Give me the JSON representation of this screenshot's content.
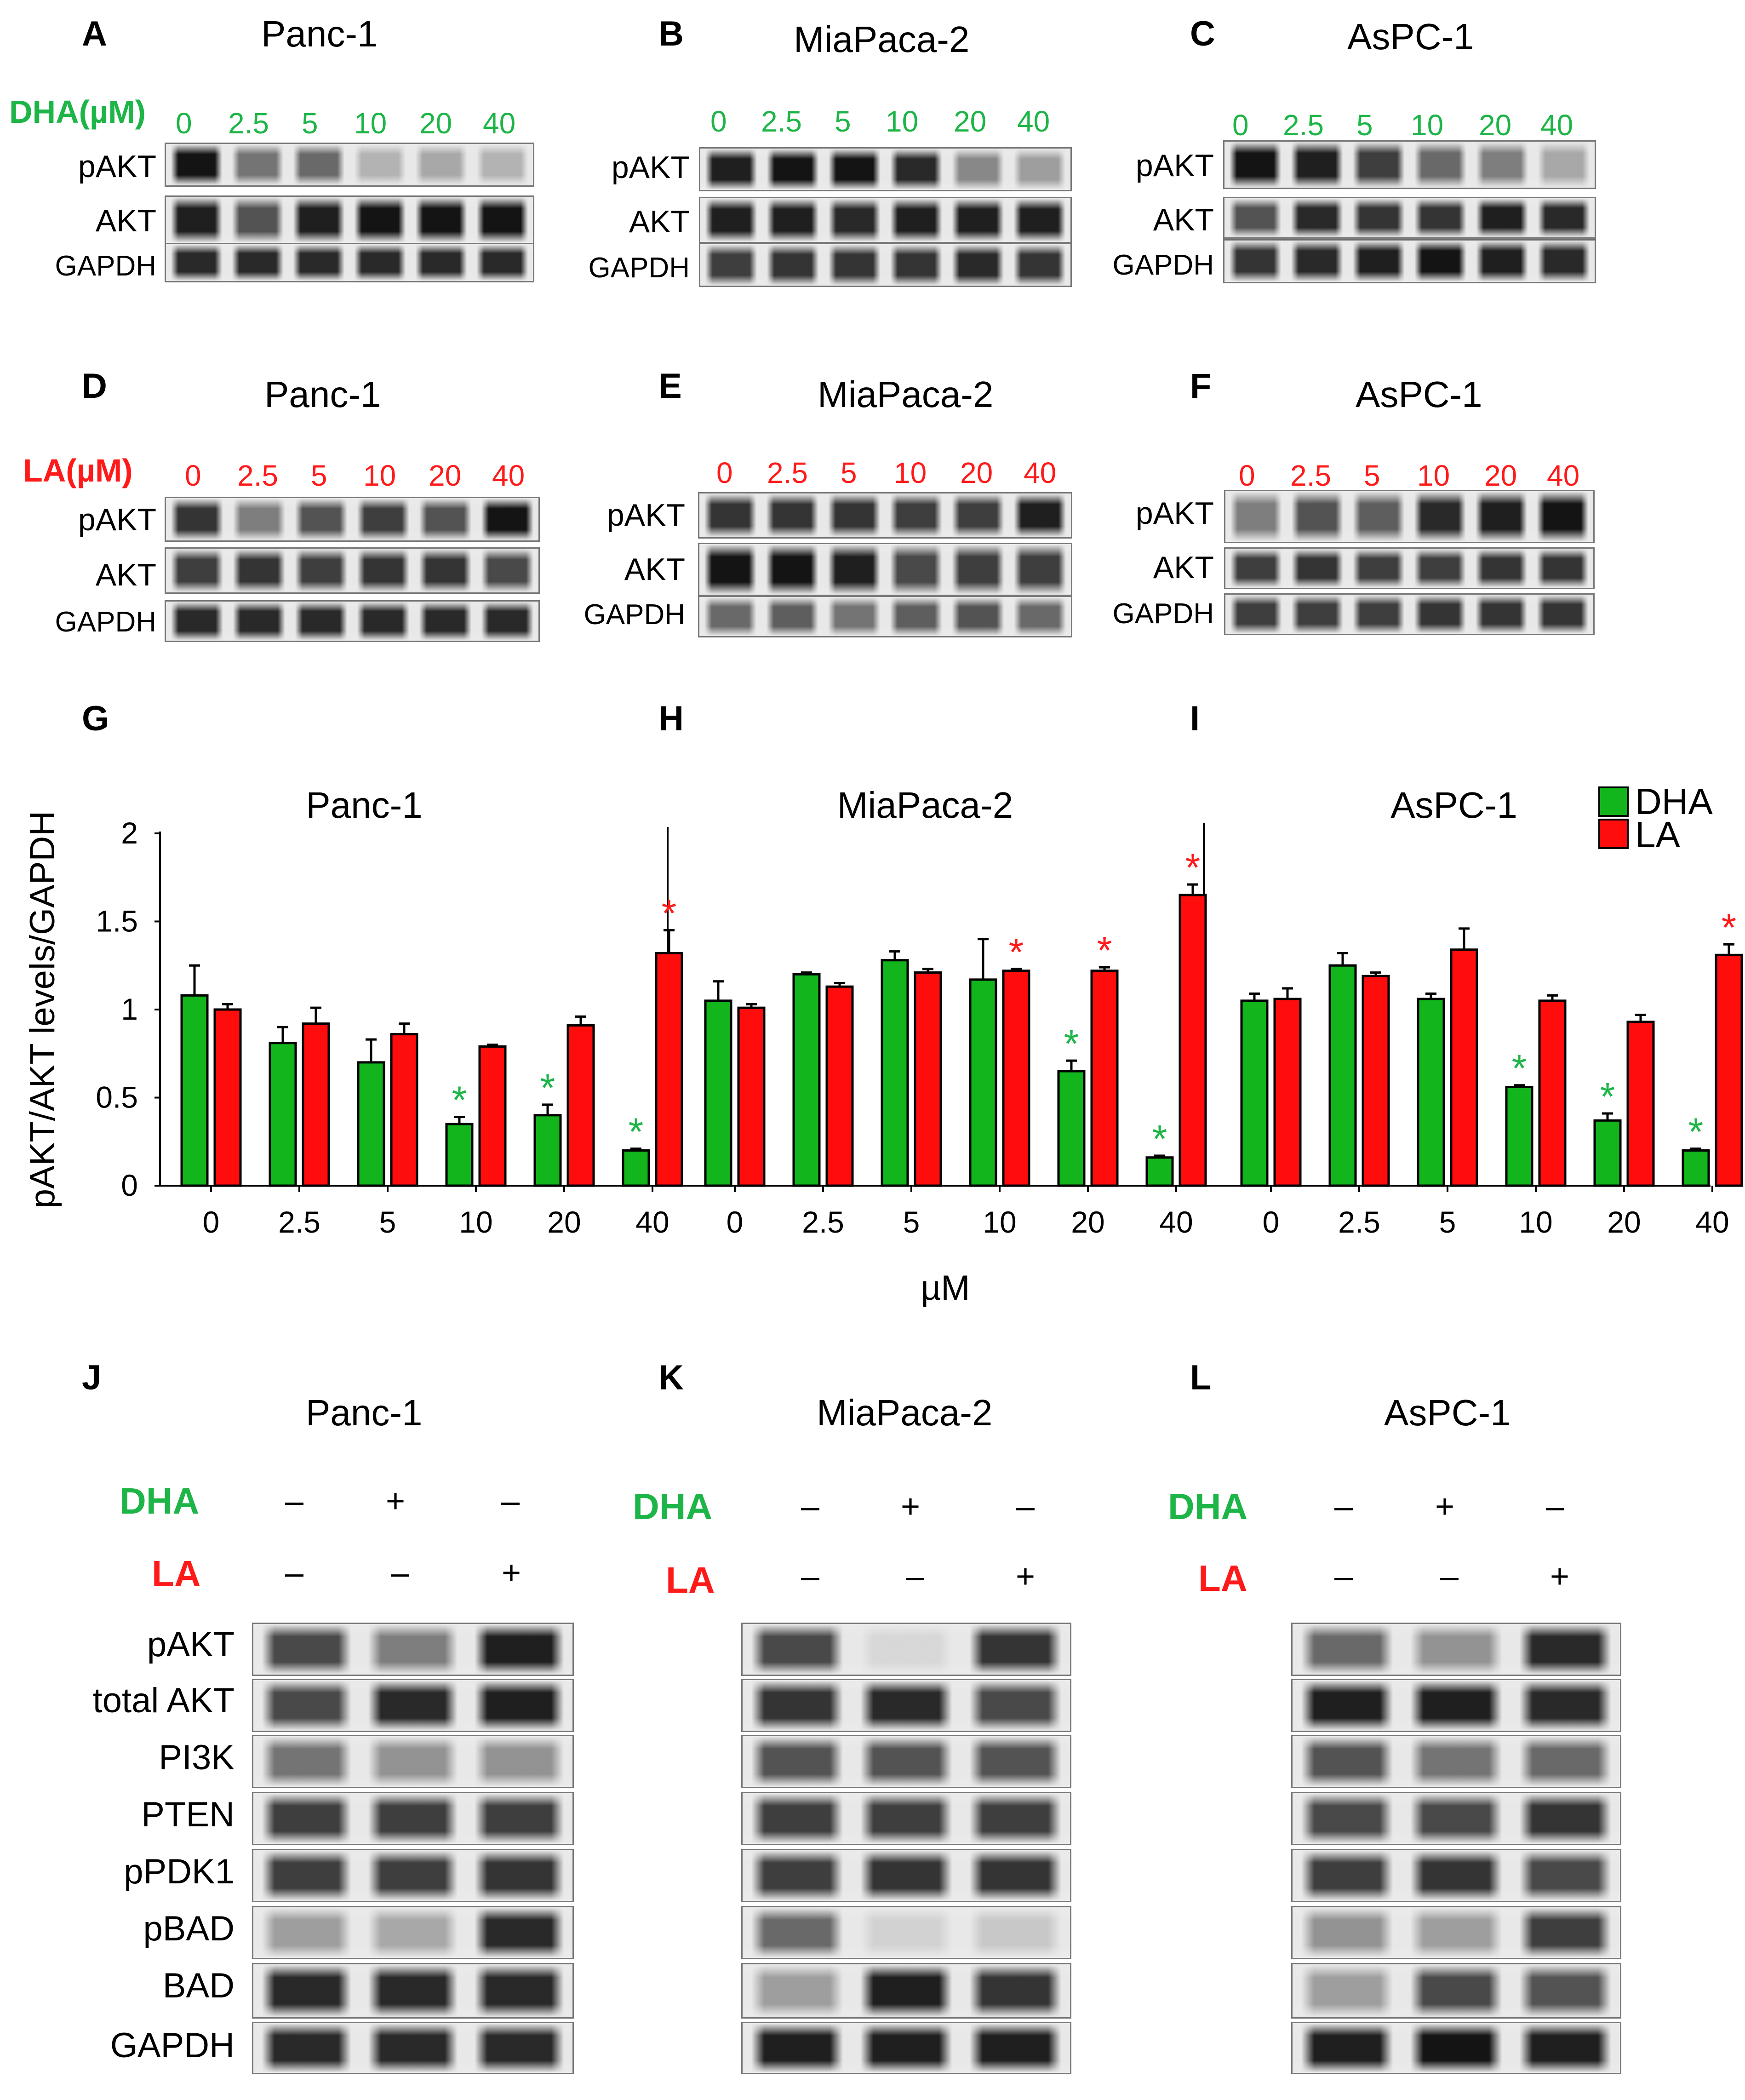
{
  "panels_top": [
    {
      "letter": "A",
      "title": "Panc-1",
      "treatment": "DHA(µM)",
      "concs": [
        "0",
        "2.5",
        "5",
        "10",
        "20",
        "40"
      ],
      "rows": [
        "pAKT",
        "AKT",
        "GAPDH"
      ]
    },
    {
      "letter": "B",
      "title": "MiaPaca-2",
      "concs": [
        "0",
        "2.5",
        "5",
        "10",
        "20",
        "40"
      ],
      "rows": [
        "pAKT",
        "AKT",
        "GAPDH"
      ]
    },
    {
      "letter": "C",
      "title": "AsPC-1",
      "concs": [
        "0",
        "2.5",
        "5",
        "10",
        "20",
        "40"
      ],
      "rows": [
        "pAKT",
        "AKT",
        "GAPDH"
      ]
    }
  ],
  "panels_mid": [
    {
      "letter": "D",
      "title": "Panc-1",
      "treatment": "LA(µM)",
      "concs": [
        "0",
        "2.5",
        "5",
        "10",
        "20",
        "40"
      ],
      "rows": [
        "pAKT",
        "AKT",
        "GAPDH"
      ]
    },
    {
      "letter": "E",
      "title": "MiaPaca-2",
      "concs": [
        "0",
        "2.5",
        "5",
        "10",
        "20",
        "40"
      ],
      "rows": [
        "pAKT",
        "AKT",
        "GAPDH"
      ]
    },
    {
      "letter": "F",
      "title": "AsPC-1",
      "concs": [
        "0",
        "2.5",
        "5",
        "10",
        "20",
        "40"
      ],
      "rows": [
        "pAKT",
        "AKT",
        "GAPDH"
      ]
    }
  ],
  "panels_bottom": [
    {
      "letter": "J",
      "title": "Panc-1",
      "dha_label": "DHA",
      "la_label": "LA",
      "dha_signs": [
        "–",
        "+",
        "–"
      ],
      "la_signs": [
        "–",
        "–",
        "+"
      ],
      "rows": [
        "pAKT",
        "total AKT",
        "PI3K",
        "PTEN",
        "pPDK1",
        "pBAD",
        "BAD",
        "GAPDH"
      ]
    },
    {
      "letter": "K",
      "title": "MiaPaca-2",
      "dha_label": "DHA",
      "la_label": "LA",
      "dha_signs": [
        "–",
        "+",
        "–"
      ],
      "la_signs": [
        "–",
        "–",
        "+"
      ]
    },
    {
      "letter": "L",
      "title": "AsPC-1",
      "dha_label": "DHA",
      "la_label": "LA",
      "dha_signs": [
        "–",
        "+",
        "–"
      ],
      "la_signs": [
        "–",
        "–",
        "+"
      ]
    }
  ],
  "chart_letters": [
    "G",
    "H",
    "I"
  ],
  "colors": {
    "dha": "#12b51c",
    "la": "#ff0d0d",
    "green_text": "#1db547",
    "red_text": "#ff1a1a"
  },
  "chart_data": {
    "type": "bar",
    "ylabel": "pAKT/AKT levels/GAPDH",
    "xlabel": "µM",
    "ylim": [
      0,
      2
    ],
    "yticks": [
      "0",
      "0.5",
      "1",
      "1.5",
      "2"
    ],
    "categories": [
      "0",
      "2.5",
      "5",
      "10",
      "20",
      "40"
    ],
    "legend": [
      "DHA",
      "LA"
    ],
    "legend_position": "top-right",
    "significance_mark": "*",
    "subplots": [
      {
        "title": "Panc-1",
        "series": [
          {
            "name": "DHA",
            "values": [
              1.08,
              0.81,
              0.7,
              0.35,
              0.4,
              0.2
            ],
            "errors": [
              0.17,
              0.09,
              0.13,
              0.04,
              0.06,
              0.01
            ],
            "significant": [
              false,
              false,
              false,
              true,
              true,
              true
            ]
          },
          {
            "name": "LA",
            "values": [
              1.0,
              0.92,
              0.86,
              0.79,
              0.91,
              1.32
            ],
            "errors": [
              0.03,
              0.09,
              0.06,
              0.01,
              0.05,
              0.13
            ],
            "significant": [
              false,
              false,
              false,
              false,
              false,
              true
            ]
          }
        ]
      },
      {
        "title": "MiaPaca-2",
        "series": [
          {
            "name": "DHA",
            "values": [
              1.05,
              1.2,
              1.28,
              1.17,
              0.65,
              0.16
            ],
            "errors": [
              0.11,
              0.01,
              0.05,
              0.23,
              0.06,
              0.01
            ],
            "significant": [
              false,
              false,
              false,
              false,
              true,
              true
            ]
          },
          {
            "name": "LA",
            "values": [
              1.01,
              1.13,
              1.21,
              1.22,
              1.22,
              1.65
            ],
            "errors": [
              0.02,
              0.02,
              0.02,
              0.01,
              0.02,
              0.06
            ],
            "significant": [
              false,
              false,
              false,
              true,
              true,
              true
            ]
          }
        ]
      },
      {
        "title": "AsPC-1",
        "series": [
          {
            "name": "DHA",
            "values": [
              1.05,
              1.25,
              1.06,
              0.56,
              0.37,
              0.2
            ],
            "errors": [
              0.04,
              0.07,
              0.03,
              0.01,
              0.04,
              0.01
            ],
            "significant": [
              false,
              false,
              false,
              true,
              true,
              true
            ]
          },
          {
            "name": "LA",
            "values": [
              1.06,
              1.19,
              1.34,
              1.05,
              0.93,
              1.31
            ],
            "errors": [
              0.06,
              0.02,
              0.12,
              0.03,
              0.04,
              0.06
            ],
            "significant": [
              false,
              false,
              false,
              false,
              false,
              true
            ]
          }
        ]
      }
    ]
  }
}
